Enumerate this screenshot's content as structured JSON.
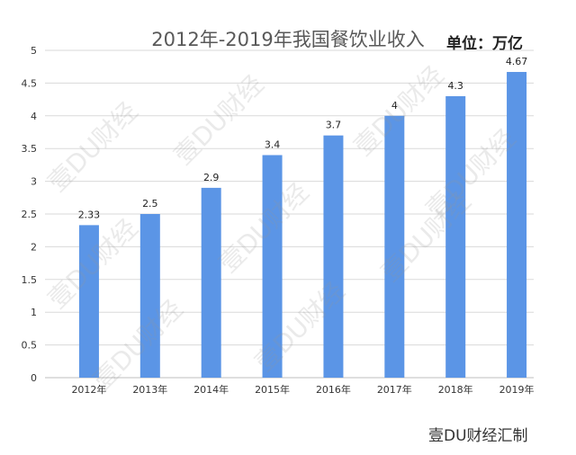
{
  "chart_data": {
    "type": "bar",
    "title": "2012年-2019年我国餐饮业收入",
    "unit_label": "单位：万亿",
    "categories": [
      "2012年",
      "2013年",
      "2014年",
      "2015年",
      "2016年",
      "2017年",
      "2018年",
      "2019年"
    ],
    "values": [
      2.33,
      2.5,
      2.9,
      3.4,
      3.7,
      4,
      4.3,
      4.67
    ],
    "value_labels": [
      "2.33",
      "2.5",
      "2.9",
      "3.4",
      "3.7",
      "4",
      "4.3",
      "4.67"
    ],
    "yticks": [
      "0",
      "0.5",
      "1",
      "1.5",
      "2",
      "2.5",
      "3",
      "3.5",
      "4",
      "4.5",
      "5"
    ],
    "ylim": [
      0,
      5
    ],
    "grid": true,
    "bar_color": "#5b95e6"
  },
  "watermark": "壹DU财经",
  "footer": "壹DU财经汇制"
}
